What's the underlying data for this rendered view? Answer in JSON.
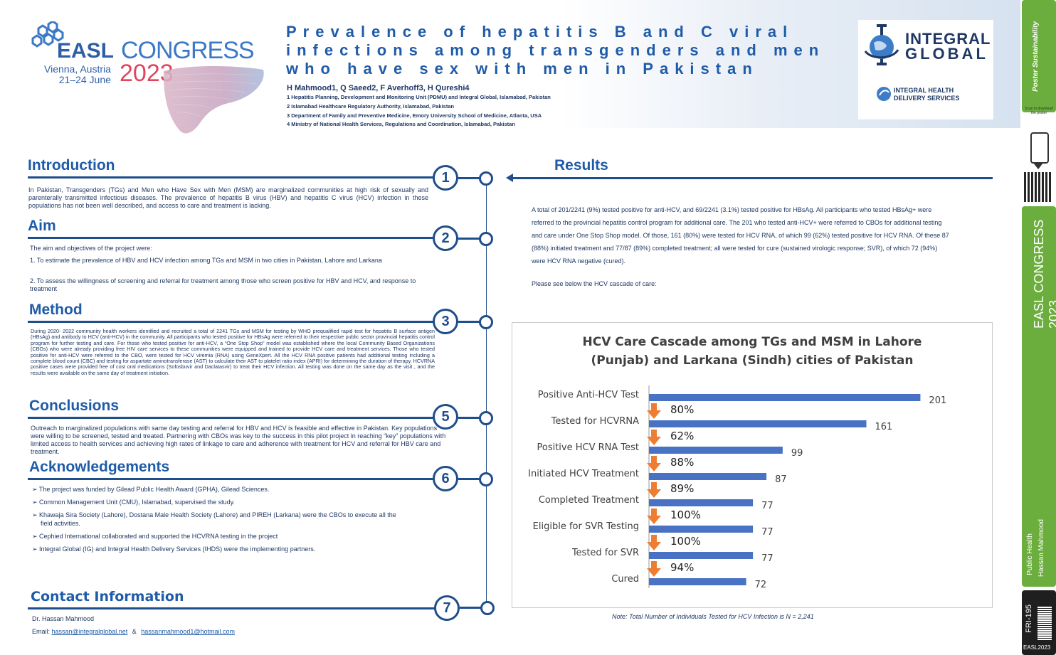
{
  "header": {
    "easl_word": "EASL",
    "congress_word": "CONGRESS",
    "venue_line1": "Vienna, Austria",
    "venue_line2": "21–24 June",
    "year": "2023",
    "title": "Prevalence of hepatitis B and C viral infections among transgenders and men who have sex with men in Pakistan",
    "authors": "H Mahmood1, Q Saeed2, F Averhoff3, H Qureshi4",
    "affiliations": [
      "1 Hepatitis Planning, Development and Monitoring Unit (PDMU) and Integral Global, Islamabad, Pakistan",
      "2 Islamabad Healthcare Regulatory Authority, Islamabad, Pakistan",
      "3 Department of Family and Preventive Medicine, Emory University School of Medicine, Atlanta, USA",
      "4 Ministry of National Health Services, Regulations and Coordination, Islamabad, Pakistan"
    ],
    "ig_line1": "INTEGRAL",
    "ig_line2": "GLOBAL",
    "ihds_line1": "INTEGRAL HEALTH",
    "ihds_line2": "DELIVERY SERVICES"
  },
  "sidebar": {
    "scan_text": "Scan to download the poster",
    "congress": "EASL CONGRESS 2023",
    "topic": "Public Health",
    "author": "Hassan Mahmood",
    "poster_id": "FRI-195",
    "footer": "EASL2023"
  },
  "sections": {
    "intro": {
      "heading": "Introduction",
      "number": "1",
      "text": "In Pakistan, Transgenders (TGs) and Men who Have Sex with Men (MSM) are marginalized communities at high risk of sexually and parenterally transmitted infectious diseases. The prevalence of hepatitis B virus (HBV) and hepatitis C virus (HCV) infection in these populations has not been well described, and access to care and treatment is lacking."
    },
    "aim": {
      "heading": "Aim",
      "number": "2",
      "lead": "The aim and objectives of the project were:",
      "item1": "1. To estimate the prevalence of HBV and HCV infection among TGs and MSM in two cities in Pakistan, Lahore and Larkana",
      "item2": "2. To assess the willingness of screening and referral for treatment among those who screen positive for HBV and HCV, and response to treatment"
    },
    "method": {
      "heading": "Method",
      "number": "3",
      "text": "During 2020- 2022 community health workers identified and recruited a total of 2241 TGs and MSM for testing by WHO prequalified rapid test for hepatitis B surface antigen (HBsAg) and antibody to HCV (anti-HCV) in the community. All participants who tested positive for HBsAg were referred to their respective public sector provincial hepatitis control program for further testing and care. For those who tested positive for anti-HCV, a “One Stop Shop” model was established where the local Community Based Organizations (CBOs) who were already providing free HIV care services to these communities were equipped and trained to provide HCV care and treatment services. Those who tested positive for anti-HCV were referred to the CBO, were tested for HCV viremia (RNA) using GeneXpert. All the HCV RNA positive patients had additional testing including a complete blood count (CBC) and testing for aspartate aminotransferase (AST) to calculate their AST to platelet ratio index (APRI) for determining the duration of therapy. HCVRNA positive cases were provided free of cost oral medications (Sofosbuvir and Daclatasvir) to treat their HCV infection. All testing was done on the same day as the visit , and the results were available on the same day of treatment initiation."
    },
    "conclusions": {
      "heading": "Conclusions",
      "number": "5",
      "text": "Outreach to marginalized populations with same day testing and referral for HBV and HCV is feasible and effective in Pakistan. Key populations were willing to be screened, tested and treated. Partnering with CBOs was key to the success in this pilot project in reaching “key” populations with limited access to health services and achieving high rates of linkage to care and adherence with treatment for HCV and referral for HBV care and treatment."
    },
    "ack": {
      "heading": "Acknowledgements",
      "number": "6",
      "items": [
        "The project was funded by Gilead Public Health Award (GPHA), Gilead Sciences.",
        "Common Management Unit (CMU), Islamabad, supervised the study.",
        "Khawaja Sira Society (Lahore), Dostana Male Health Society (Lahore) and PIREH (Larkana) were the CBOs to execute all the field activities.",
        "Cephied International collaborated and supported the HCVRNA testing in the project",
        "Integral Global (IG) and Integral Health Delivery Services (IHDS) were the implementing partners."
      ]
    },
    "contact": {
      "heading": "Contact Information",
      "number": "7",
      "name": "Dr. Hassan Mahmood",
      "email_label": "Email:",
      "email1": "hassan@integralglobal.net",
      "amp": "&",
      "email2": "hassanmahmood1@hotmail.com"
    },
    "results": {
      "heading": "Results",
      "text": "A total of 201/2241 (9%) tested positive for anti-HCV, and 69/2241 (3.1%) tested positive for HBsAg. All participants who tested HBsAg+ were referred to the provincial hepatitis control program for additional care. The 201 who tested anti-HCV+ were referred to CBOs for additional testing and care under One Stop Shop model. Of those, 161 (80%) were tested for HCV RNA, of which 99 (62%) tested positive for HCV RNA. Of these 87 (88%) initiated treatment and 77/87 (89%) completed treatment; all were tested for cure (sustained virologic response; SVR), of which 72 (94%) were HCV RNA negative (cured).",
      "see_below": "Please see below the HCV cascade of care:",
      "note": "Note: Total Number of Individuals Tested for HCV Infection is N = 2,241"
    }
  },
  "chart_data": {
    "type": "bar",
    "orientation": "horizontal",
    "title": "HCV Care Cascade among TGs and MSM in Lahore (Punjab) and Larkana (Sindh) cities of Pakistan",
    "categories": [
      "Positive Anti-HCV Test",
      "Tested for HCVRNA",
      "Positive HCV RNA Test",
      "Initiated HCV Treatment",
      "Completed Treatment",
      "Eligible for SVR Testing",
      "Tested for SVR",
      "Cured"
    ],
    "values": [
      201,
      161,
      99,
      87,
      77,
      77,
      77,
      72
    ],
    "step_labels": [
      "80%",
      "62%",
      "88%",
      "89%",
      "100%",
      "100%",
      "94%"
    ],
    "xlim": [
      0,
      215
    ],
    "bar_color": "#4a72c4",
    "arrow_color": "#ed7d31",
    "grid": false,
    "legend": "none"
  }
}
